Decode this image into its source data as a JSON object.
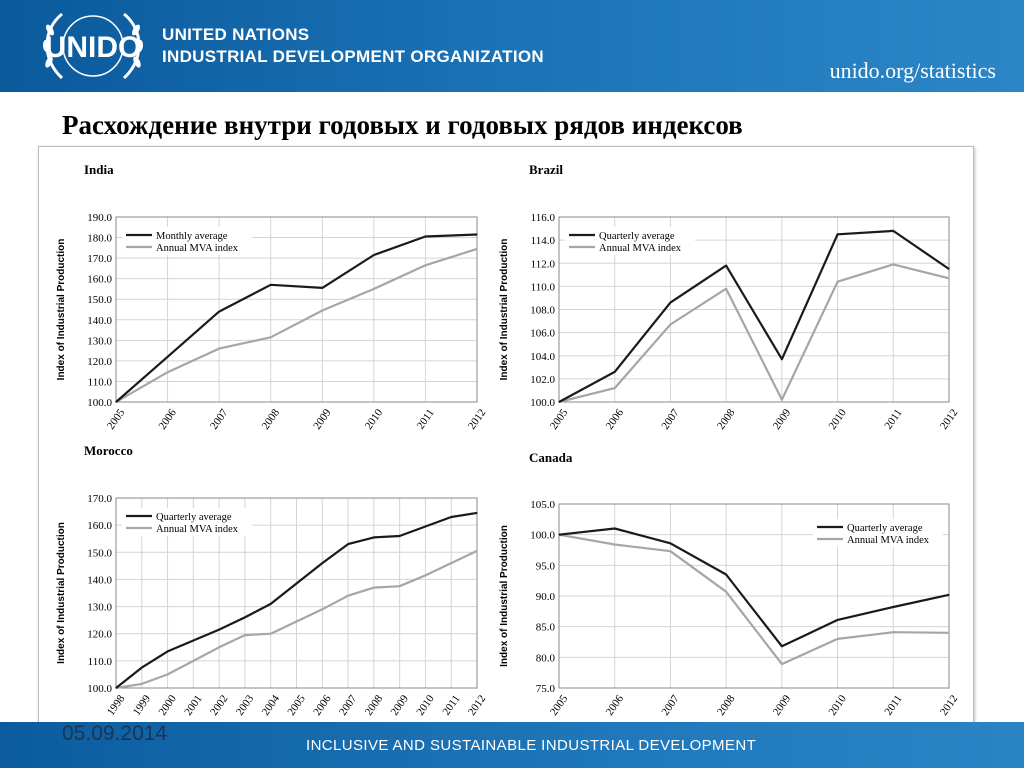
{
  "header": {
    "org_line1": "UNITED NATIONS",
    "org_line2": "INDUSTRIAL DEVELOPMENT ORGANIZATION",
    "url": "unido.org/statistics",
    "logo_text": "UNIDO"
  },
  "slide": {
    "title": "Расхождение внутри годовых и годовых рядов индексов"
  },
  "footer": {
    "tagline": "INCLUSIVE AND SUSTAINABLE INDUSTRIAL DEVELOPMENT",
    "date": "05.09.2014"
  },
  "colors": {
    "series1": "#1a1a1a",
    "series2": "#a6a6a6",
    "grid": "#d4d4d4"
  },
  "chart_data": [
    {
      "type": "line",
      "title": "India",
      "ylabel": "Index of Industrial Production",
      "x": [
        "2005",
        "2006",
        "2007",
        "2008",
        "2009",
        "2010",
        "2011",
        "2012"
      ],
      "ylim": [
        100,
        190
      ],
      "yticks": [
        "100.0",
        "110.0",
        "120.0",
        "130.0",
        "140.0",
        "150.0",
        "160.0",
        "170.0",
        "180.0",
        "190.0"
      ],
      "legend": "top-left",
      "series": [
        {
          "name": "Monthly average",
          "values": [
            100,
            122,
            144,
            157,
            155.5,
            171.5,
            180.5,
            181.5
          ]
        },
        {
          "name": "Annual MVA index",
          "values": [
            100,
            114.5,
            126,
            131.5,
            144.5,
            155,
            166.5,
            174.5
          ]
        }
      ]
    },
    {
      "type": "line",
      "title": "Brazil",
      "ylabel": "Index of Industrial Production",
      "x": [
        "2005",
        "2006",
        "2007",
        "2008",
        "2009",
        "2010",
        "2011",
        "2012"
      ],
      "ylim": [
        100,
        116
      ],
      "yticks": [
        "100.0",
        "102.0",
        "104.0",
        "106.0",
        "108.0",
        "110.0",
        "112.0",
        "114.0",
        "116.0"
      ],
      "legend": "top-left",
      "series": [
        {
          "name": "Quarterly average",
          "values": [
            100,
            102.6,
            108.6,
            111.8,
            103.7,
            114.5,
            114.8,
            111.5
          ]
        },
        {
          "name": "Annual MVA index",
          "values": [
            100,
            101.2,
            106.7,
            109.8,
            100.2,
            110.4,
            111.9,
            110.7
          ]
        }
      ]
    },
    {
      "type": "line",
      "title": "Morocco",
      "ylabel": "Index of Industrial Production",
      "x": [
        "1998",
        "1999",
        "2000",
        "2001",
        "2002",
        "2003",
        "2004",
        "2005",
        "2006",
        "2007",
        "2008",
        "2009",
        "2010",
        "2011",
        "2012"
      ],
      "ylim": [
        100,
        170
      ],
      "yticks": [
        "100.0",
        "110.0",
        "120.0",
        "130.0",
        "140.0",
        "150.0",
        "160.0",
        "170.0"
      ],
      "legend": "top-left",
      "series": [
        {
          "name": "Quarterly average",
          "values": [
            100,
            107.5,
            113.5,
            117.5,
            121.5,
            126,
            131,
            138.5,
            146,
            153,
            155.5,
            156,
            159.5,
            163,
            164.5
          ]
        },
        {
          "name": "Annual MVA index",
          "values": [
            100,
            101.5,
            105,
            110,
            115,
            119.5,
            120,
            124.5,
            129,
            134,
            137,
            137.5,
            141.5,
            146,
            150.5
          ]
        }
      ]
    },
    {
      "type": "line",
      "title": "Canada",
      "ylabel": "Index of Industrial Production",
      "x": [
        "2005",
        "2006",
        "2007",
        "2008",
        "2009",
        "2010",
        "2011",
        "2012"
      ],
      "ylim": [
        75,
        105
      ],
      "yticks": [
        "75.0",
        "80.0",
        "85.0",
        "90.0",
        "95.0",
        "100.0",
        "105.0"
      ],
      "legend": "top-right",
      "series": [
        {
          "name": "Quarterly average",
          "values": [
            100,
            101,
            98.6,
            93.5,
            81.8,
            86.1,
            88.2,
            90.2
          ]
        },
        {
          "name": "Annual MVA index",
          "values": [
            100,
            98.4,
            97.3,
            90.7,
            78.9,
            83,
            84.1,
            84
          ]
        }
      ]
    }
  ]
}
